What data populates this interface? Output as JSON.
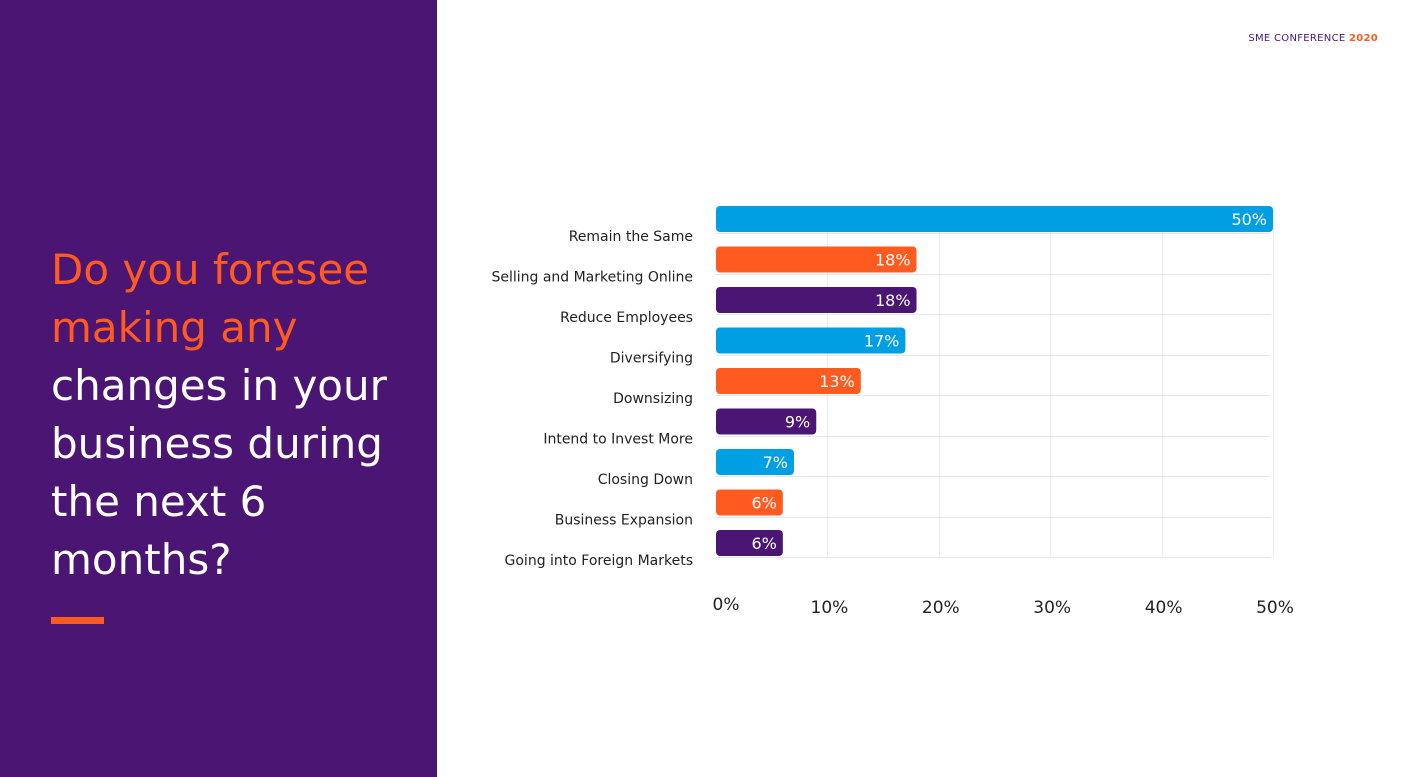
{
  "header": {
    "brand_text": "SME CONFERENCE",
    "brand_year": "2020"
  },
  "sidebar": {
    "question_accent": "Do you foresee making any",
    "question_rest": "changes in your business during the next 6 months?"
  },
  "colors": {
    "purple": "#4a1573",
    "orange": "#ff5a1f",
    "blue": "#009fe3"
  },
  "chart_data": {
    "type": "bar",
    "orientation": "horizontal",
    "categories": [
      "Remain the Same",
      "Selling and Marketing Online",
      "Reduce Employees",
      "Diversifying",
      "Downsizing",
      "Intend to Invest More",
      "Closing Down",
      "Business Expansion",
      "Going into Foreign Markets"
    ],
    "values": [
      50,
      18,
      18,
      17,
      13,
      9,
      7,
      6,
      6
    ],
    "data_labels": [
      "50%",
      "18%",
      "18%",
      "17%",
      "13%",
      "9%",
      "7%",
      "6%",
      "6%"
    ],
    "bar_colors": [
      "#009fe3",
      "#ff5a1f",
      "#4a1573",
      "#009fe3",
      "#ff5a1f",
      "#4a1573",
      "#009fe3",
      "#ff5a1f",
      "#4a1573"
    ],
    "xlim": [
      0,
      50
    ],
    "x_ticks": [
      0,
      10,
      20,
      30,
      40,
      50
    ],
    "x_tick_labels": [
      "0%",
      "10%",
      "20%",
      "30%",
      "40%",
      "50%"
    ],
    "grid": true
  }
}
